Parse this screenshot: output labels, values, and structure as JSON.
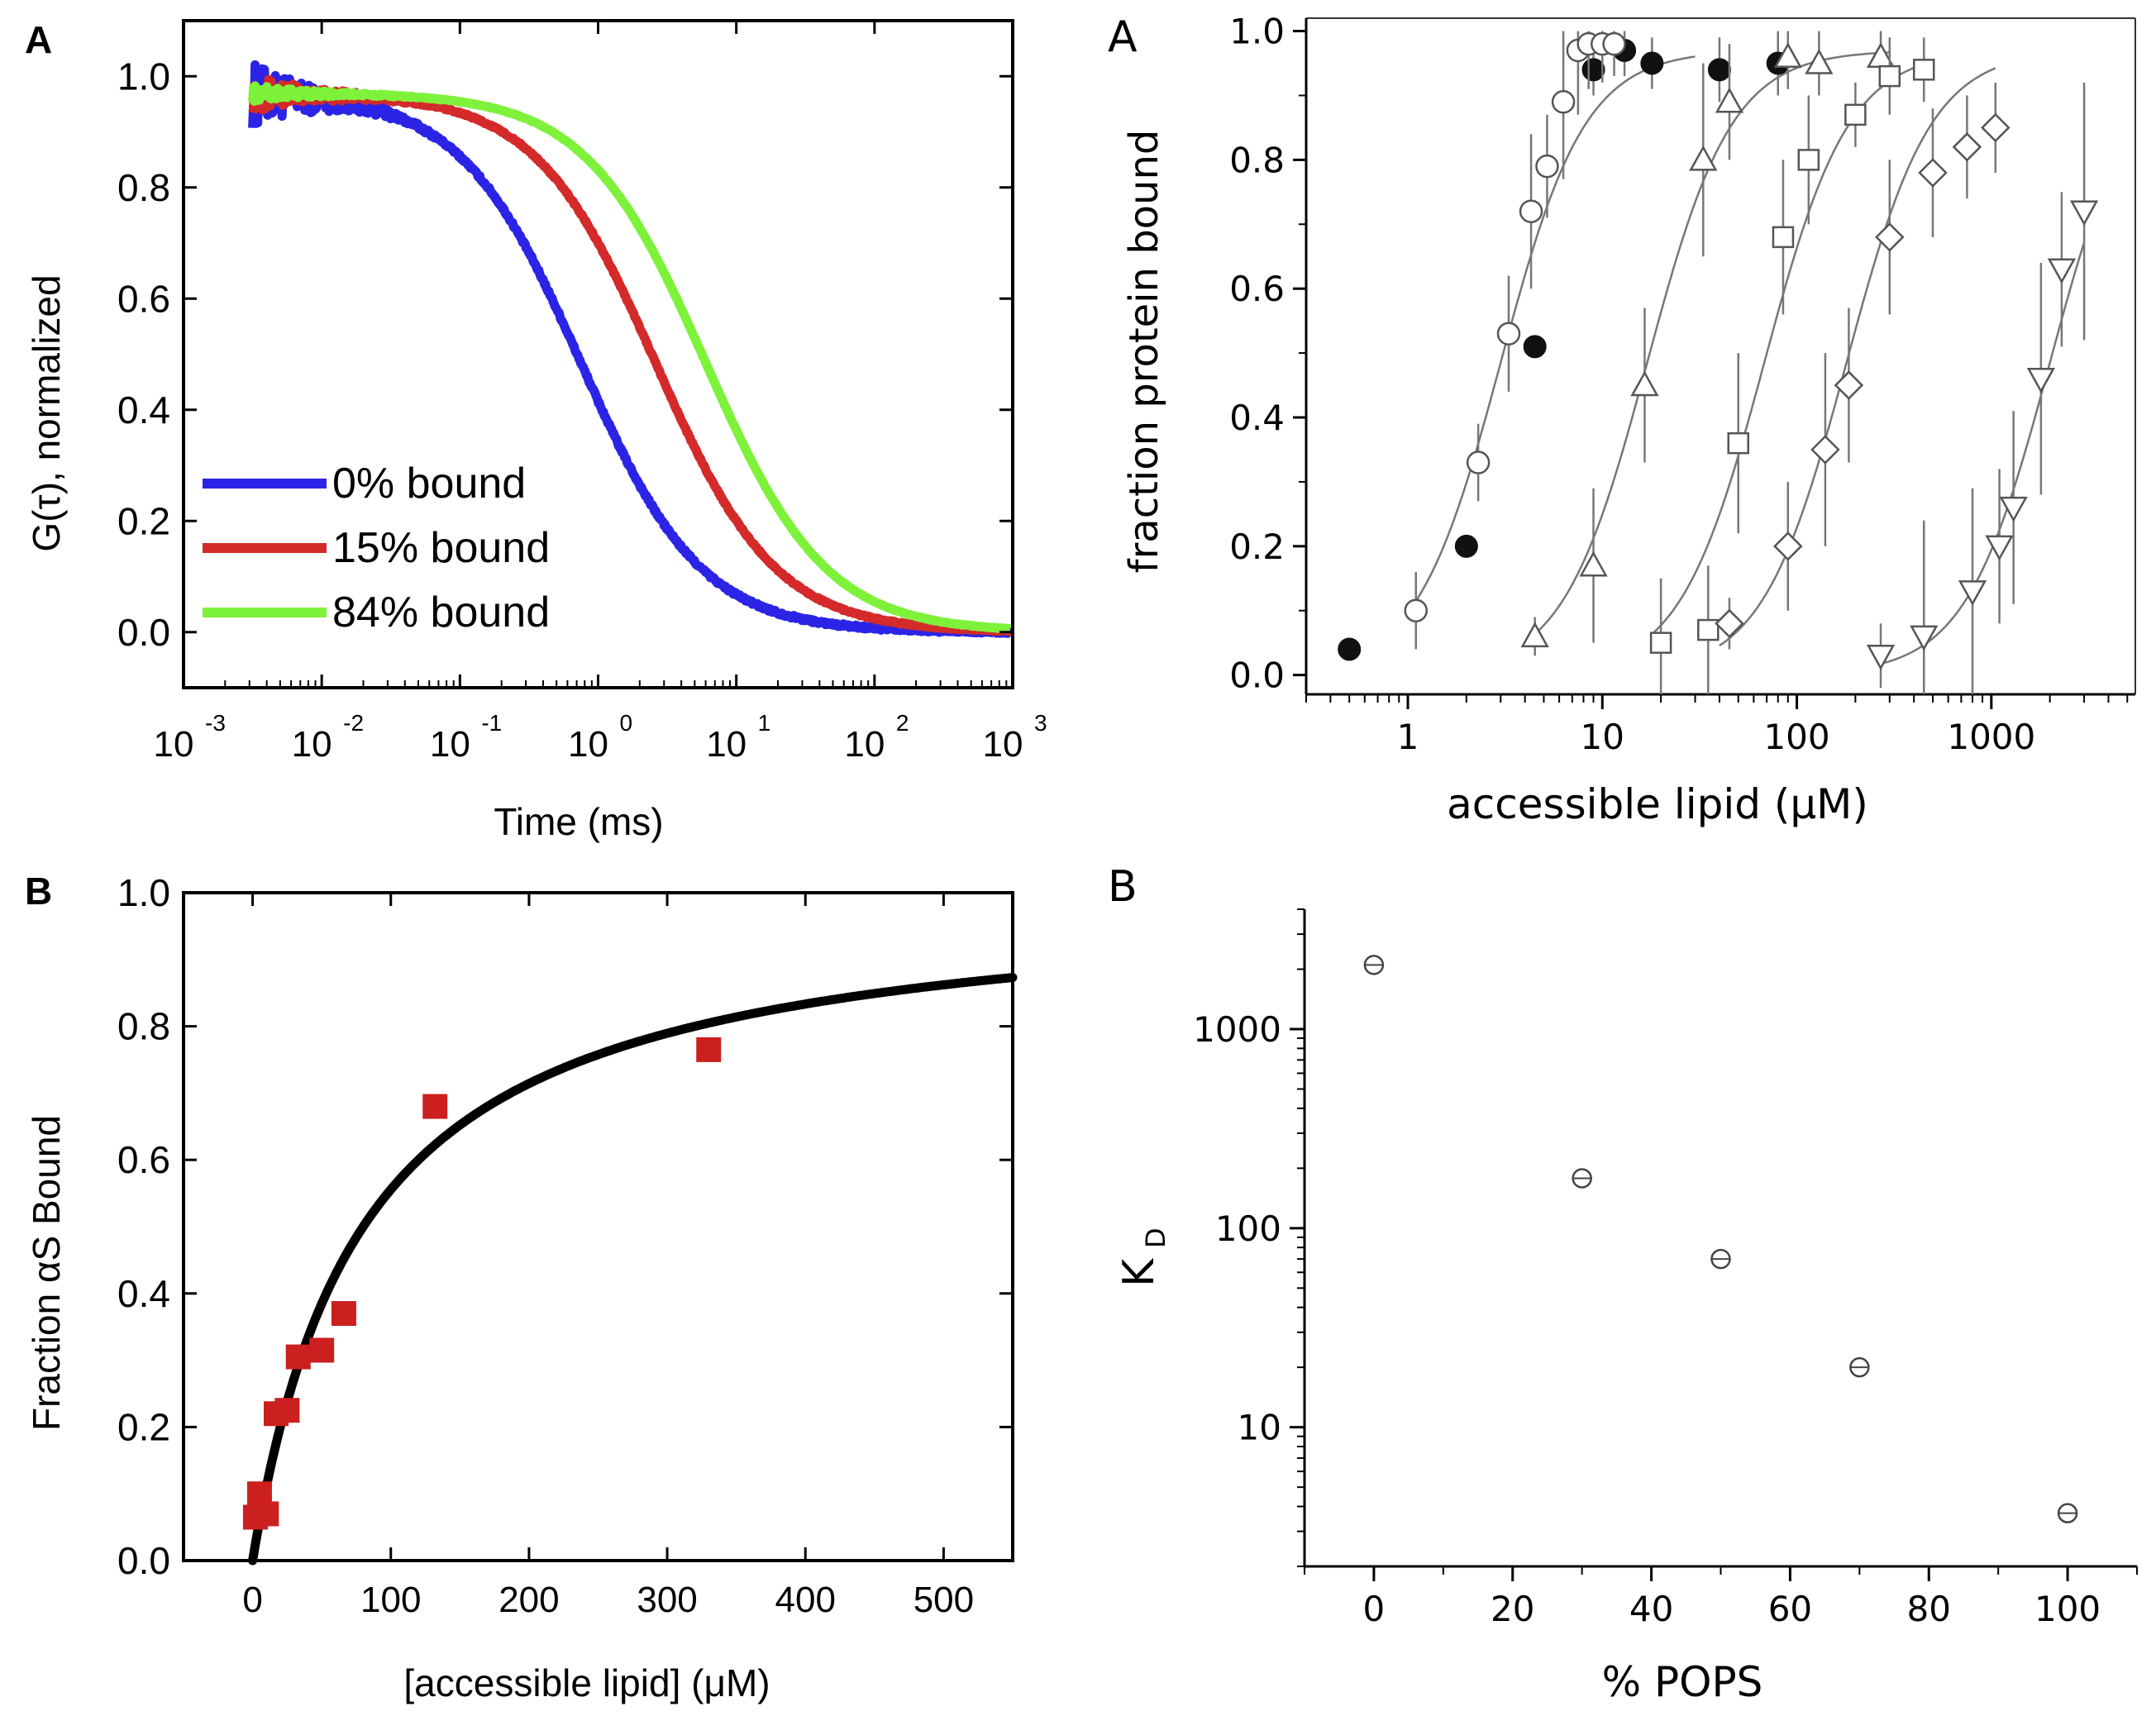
{
  "chart_data": [
    {
      "id": "panel-top-left",
      "type": "line",
      "panel_label": "A",
      "xscale": "log",
      "xlabel": "Time (ms)",
      "ylabel": "G(τ), normalized",
      "xlim": [
        0.001,
        1000
      ],
      "ylim": [
        -0.1,
        1.1
      ],
      "xticks": [
        -3,
        -2,
        -1,
        0,
        1,
        2,
        3
      ],
      "xtick_base": "10",
      "xtick_exps": [
        "-3",
        "-2",
        "-1",
        "0",
        "1",
        "2",
        "3"
      ],
      "yticks": [
        "0.0",
        "0.2",
        "0.4",
        "0.6",
        "0.8",
        "1.0"
      ],
      "legend_position": "bottom-left",
      "series": [
        {
          "name": "0% bound",
          "color": "#2b24e6",
          "tau_ms": 0.75,
          "noise": 0.06
        },
        {
          "name": "15% bound",
          "color": "#d42a2a",
          "tau_ms": 2.6,
          "noise": 0.035
        },
        {
          "name": "84% bound",
          "color": "#7ef23a",
          "tau_ms": 6.0,
          "noise": 0.015
        }
      ]
    },
    {
      "id": "panel-bottom-left",
      "type": "scatter",
      "panel_label": "B",
      "xlabel": "[accessible lipid] (μM)",
      "ylabel": "Fraction αS Bound",
      "xlim": [
        -50,
        550
      ],
      "ylim": [
        0,
        1.0
      ],
      "xticks": [
        "0",
        "100",
        "200",
        "300",
        "400",
        "500"
      ],
      "yticks": [
        "0.0",
        "0.2",
        "0.4",
        "0.6",
        "0.8",
        "1.0"
      ],
      "marker_color": "#cc1f1f",
      "fit": {
        "type": "hyperbolic",
        "Kd_uM": 80,
        "color": "#000000"
      },
      "points": [
        {
          "x": 2,
          "y": 0.065
        },
        {
          "x": 5,
          "y": 0.1
        },
        {
          "x": 10,
          "y": 0.07
        },
        {
          "x": 17,
          "y": 0.22
        },
        {
          "x": 25,
          "y": 0.225
        },
        {
          "x": 33,
          "y": 0.305
        },
        {
          "x": 50,
          "y": 0.315
        },
        {
          "x": 66,
          "y": 0.37
        },
        {
          "x": 132,
          "y": 0.68
        },
        {
          "x": 330,
          "y": 0.765
        }
      ]
    },
    {
      "id": "panel-top-right",
      "type": "scatter",
      "panel_label": "A",
      "xscale": "log",
      "xlabel": "accessible lipid (μM)",
      "ylabel": "fraction protein bound",
      "xlim": [
        0.3,
        5500
      ],
      "ylim": [
        -0.03,
        1.02
      ],
      "xticks": [
        "1",
        "10",
        "100",
        "1000"
      ],
      "yticks": [
        "0.0",
        "0.2",
        "0.4",
        "0.6",
        "0.8",
        "1.0"
      ],
      "series": [
        {
          "name": "filled-circle",
          "marker": "filled-circle",
          "Kd_uM": 3.0,
          "fit": false,
          "points": [
            [
              0.5,
              0.04,
              0
            ],
            [
              2.0,
              0.2,
              0
            ],
            [
              4.5,
              0.51,
              0
            ],
            [
              9,
              0.94,
              0.04
            ],
            [
              13,
              0.97,
              0.04
            ],
            [
              18,
              0.95,
              0.04
            ],
            [
              40,
              0.94,
              0.05
            ],
            [
              80,
              0.95,
              0.05
            ]
          ]
        },
        {
          "name": "open-circle",
          "marker": "circle",
          "Kd_uM": 3.0,
          "fit": true,
          "fit_range": [
            1.05,
            30
          ],
          "points": [
            [
              1.1,
              0.1,
              0.06
            ],
            [
              2.3,
              0.33,
              0.06
            ],
            [
              3.3,
              0.53,
              0.09
            ],
            [
              4.3,
              0.72,
              0.12
            ],
            [
              5.2,
              0.79,
              0.08
            ],
            [
              6.3,
              0.89,
              0.12
            ],
            [
              7.5,
              0.97,
              0.1
            ],
            [
              8.5,
              0.98,
              0.07
            ],
            [
              10,
              0.98,
              0.06
            ],
            [
              11.5,
              0.98,
              0.05
            ]
          ]
        },
        {
          "name": "triangle-up",
          "marker": "triangle-up",
          "Kd_uM": 17,
          "fit": true,
          "fit_range": [
            4.5,
            300
          ],
          "points": [
            [
              4.5,
              0.06,
              0.03
            ],
            [
              9,
              0.17,
              0.12
            ],
            [
              16.5,
              0.45,
              0.12
            ],
            [
              33,
              0.8,
              0.15
            ],
            [
              45,
              0.89,
              0.09
            ],
            [
              90,
              0.96,
              0.05
            ],
            [
              130,
              0.95,
              0.05
            ],
            [
              270,
              0.96,
              0.05
            ]
          ]
        },
        {
          "name": "square",
          "marker": "square",
          "Kd_uM": 68,
          "fit": true,
          "fit_range": [
            18,
            450
          ],
          "points": [
            [
              20,
              0.05,
              0.1
            ],
            [
              35,
              0.07,
              0.1
            ],
            [
              50,
              0.36,
              0.14
            ],
            [
              85,
              0.68,
              0.12
            ],
            [
              115,
              0.8,
              0.1
            ],
            [
              200,
              0.87,
              0.05
            ],
            [
              300,
              0.93,
              0.06
            ],
            [
              450,
              0.94,
              0.05
            ]
          ]
        },
        {
          "name": "diamond",
          "marker": "diamond",
          "Kd_uM": 180,
          "fit": true,
          "fit_range": [
            40,
            1050
          ],
          "points": [
            [
              45,
              0.08,
              0.04
            ],
            [
              90,
              0.2,
              0.1
            ],
            [
              140,
              0.35,
              0.15
            ],
            [
              185,
              0.45,
              0.12
            ],
            [
              300,
              0.68,
              0.12
            ],
            [
              500,
              0.78,
              0.1
            ],
            [
              750,
              0.82,
              0.08
            ],
            [
              1050,
              0.85,
              0.07
            ]
          ]
        },
        {
          "name": "triangle-down",
          "marker": "triangle-down",
          "Kd_uM": 2000,
          "fit": true,
          "fit_range": [
            270,
            3000
          ],
          "points": [
            [
              270,
              0.03,
              0.05
            ],
            [
              450,
              0.06,
              0.18
            ],
            [
              800,
              0.13,
              0.16
            ],
            [
              1100,
              0.2,
              0.12
            ],
            [
              1300,
              0.26,
              0.15
            ],
            [
              1800,
              0.46,
              0.18
            ],
            [
              2300,
              0.63,
              0.12
            ],
            [
              3000,
              0.72,
              0.2
            ]
          ]
        }
      ]
    },
    {
      "id": "panel-bottom-right",
      "type": "scatter",
      "panel_label": "B",
      "yscale": "log",
      "xlabel": "% POPS",
      "ylabel_main": "K",
      "ylabel_sub": "D",
      "xlim": [
        -10,
        110
      ],
      "ylim": [
        2,
        4000
      ],
      "xticks": [
        "0",
        "20",
        "40",
        "60",
        "80",
        "100"
      ],
      "yticks": [
        "10",
        "100",
        "1000"
      ],
      "points": [
        {
          "x": 0,
          "y": 2100
        },
        {
          "x": 30,
          "y": 178
        },
        {
          "x": 50,
          "y": 70
        },
        {
          "x": 70,
          "y": 20
        },
        {
          "x": 100,
          "y": 3.7
        }
      ]
    }
  ]
}
